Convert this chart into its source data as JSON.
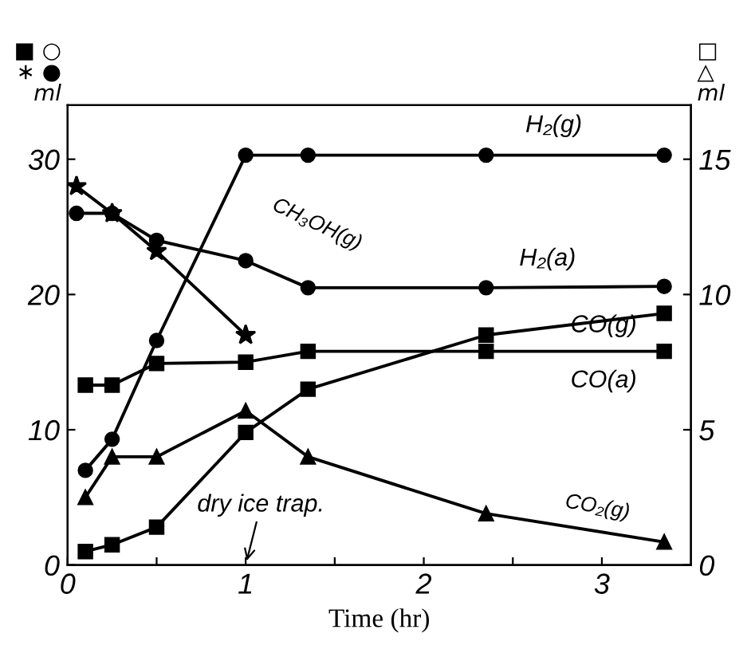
{
  "chart_data": {
    "type": "line",
    "xlabel": "Time (hr)",
    "ylabel": "■ ○\n∗ ●\nml",
    "y2label": "□\n△\nml",
    "xlim": [
      0,
      3.5
    ],
    "xticks": [
      0,
      {
        "value": 0.5,
        "label": null
      },
      1,
      {
        "value": 1.5,
        "label": null
      },
      2,
      {
        "value": 2.5,
        "label": null
      },
      3
    ],
    "ylim": [
      0,
      34
    ],
    "yticks": [
      0,
      10,
      20,
      30
    ],
    "y2lim": [
      0,
      17
    ],
    "y2ticks": [
      0,
      5,
      10,
      15
    ],
    "grid": false,
    "series": [
      {
        "color": "#000000",
        "marker": "circle",
        "axis": "y",
        "x": [
          0.1,
          0.25,
          0.5,
          1.0,
          1.35,
          2.35,
          3.35
        ],
        "values": [
          7.0,
          9.3,
          16.6,
          30.3,
          30.3,
          30.3,
          30.3
        ]
      },
      {
        "color": "#000000",
        "marker": "circle",
        "axis": "y",
        "x": [
          0.05,
          0.25,
          0.5,
          1.0,
          1.35,
          2.35,
          3.35
        ],
        "values": [
          26,
          26,
          24,
          22.5,
          20.5,
          20.5,
          20.6
        ]
      },
      {
        "color": "#000000",
        "marker": "star",
        "axis": "y",
        "x": [
          0.05,
          0.25,
          0.5,
          1.0
        ],
        "values": [
          28,
          26,
          23.2,
          17
        ]
      },
      {
        "color": "#000000",
        "marker": "square",
        "axis": "y",
        "x": [
          0.1,
          0.25,
          0.5,
          1.0,
          1.35,
          2.35,
          3.35
        ],
        "values": [
          13.3,
          13.3,
          14.9,
          15.0,
          15.8,
          15.8,
          15.8
        ]
      },
      {
        "color": "#000000",
        "marker": "square",
        "axis": "y2",
        "x": [
          0.1,
          0.25,
          0.5,
          1.0,
          1.35,
          2.35,
          3.35
        ],
        "values": [
          0.5,
          0.75,
          1.4,
          4.9,
          6.5,
          8.5,
          9.3
        ]
      },
      {
        "color": "#000000",
        "marker": "triangle",
        "axis": "y2",
        "x": [
          0.1,
          0.25,
          0.5,
          1.0,
          1.35,
          2.35,
          3.35
        ],
        "values": [
          2.5,
          4.0,
          4.0,
          5.7,
          4.0,
          1.9,
          0.85
        ]
      }
    ],
    "annotations": [
      "H₂(g)",
      "H₂(a)",
      "CH₃OH(g)",
      "CO(g)",
      "CO(a)",
      "CO₂(g)",
      "dry ice trap."
    ]
  }
}
